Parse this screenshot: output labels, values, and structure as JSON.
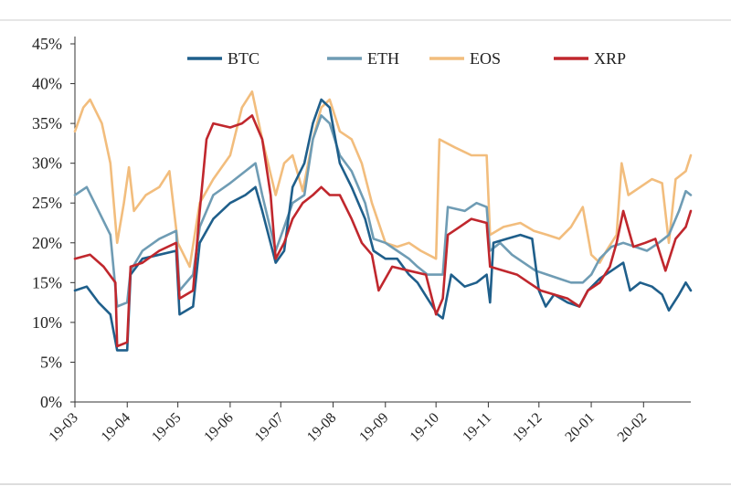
{
  "chart_data": {
    "type": "line",
    "title": "",
    "xlabel": "",
    "ylabel": "",
    "ylim": [
      0,
      45
    ],
    "y_tick_labels": [
      "0%",
      "5%",
      "10%",
      "15%",
      "20%",
      "25%",
      "30%",
      "35%",
      "40%",
      "45%"
    ],
    "y_ticks": [
      0,
      5,
      10,
      15,
      20,
      25,
      30,
      35,
      40,
      45
    ],
    "x_range": [
      "2019-03-01",
      "2020-02-29"
    ],
    "x_tick_labels": [
      "19-03",
      "19-04",
      "19-05",
      "19-06",
      "19-07",
      "19-08",
      "19-09",
      "19-10",
      "19-11",
      "19-12",
      "20-01",
      "20-02"
    ],
    "x_ticks": [
      "2019-03-01",
      "2019-04-01",
      "2019-05-01",
      "2019-06-01",
      "2019-07-01",
      "2019-08-01",
      "2019-09-01",
      "2019-10-01",
      "2019-11-01",
      "2019-12-01",
      "2020-01-01",
      "2020-02-01"
    ],
    "grid": false,
    "legend_placement": "top",
    "series": [
      {
        "name": "BTC",
        "color": "#1f5f8b",
        "points": [
          [
            "2019-03-01",
            14
          ],
          [
            "2019-03-08",
            14.5
          ],
          [
            "2019-03-15",
            12.5
          ],
          [
            "2019-03-22",
            11
          ],
          [
            "2019-03-26",
            6.5
          ],
          [
            "2019-04-01",
            6.5
          ],
          [
            "2019-04-03",
            16
          ],
          [
            "2019-04-10",
            18
          ],
          [
            "2019-04-20",
            18.5
          ],
          [
            "2019-04-30",
            19
          ],
          [
            "2019-05-02",
            11
          ],
          [
            "2019-05-10",
            12
          ],
          [
            "2019-05-14",
            20
          ],
          [
            "2019-05-22",
            23
          ],
          [
            "2019-06-01",
            25
          ],
          [
            "2019-06-10",
            26
          ],
          [
            "2019-06-16",
            27
          ],
          [
            "2019-06-20",
            24
          ],
          [
            "2019-06-28",
            17.5
          ],
          [
            "2019-07-03",
            19
          ],
          [
            "2019-07-08",
            27
          ],
          [
            "2019-07-15",
            30
          ],
          [
            "2019-07-20",
            35
          ],
          [
            "2019-07-25",
            38
          ],
          [
            "2019-07-30",
            37
          ],
          [
            "2019-08-05",
            30
          ],
          [
            "2019-08-12",
            27
          ],
          [
            "2019-08-20",
            23
          ],
          [
            "2019-08-25",
            19
          ],
          [
            "2019-09-01",
            18
          ],
          [
            "2019-09-08",
            18
          ],
          [
            "2019-09-15",
            16
          ],
          [
            "2019-09-20",
            15
          ],
          [
            "2019-09-26",
            13
          ],
          [
            "2019-10-02",
            11
          ],
          [
            "2019-10-05",
            10.5
          ],
          [
            "2019-10-10",
            16
          ],
          [
            "2019-10-18",
            14.5
          ],
          [
            "2019-10-25",
            15
          ],
          [
            "2019-10-31",
            16
          ],
          [
            "2019-11-02",
            12.5
          ],
          [
            "2019-11-04",
            20
          ],
          [
            "2019-11-12",
            20.5
          ],
          [
            "2019-11-20",
            21
          ],
          [
            "2019-11-27",
            20.5
          ],
          [
            "2019-12-01",
            14
          ],
          [
            "2019-12-05",
            12
          ],
          [
            "2019-12-10",
            13.5
          ],
          [
            "2019-12-18",
            12.5
          ],
          [
            "2019-12-25",
            12
          ],
          [
            "2019-12-30",
            14
          ],
          [
            "2020-01-06",
            15.5
          ],
          [
            "2020-01-13",
            16.5
          ],
          [
            "2020-01-20",
            17.5
          ],
          [
            "2020-01-24",
            14
          ],
          [
            "2020-01-30",
            15
          ],
          [
            "2020-02-06",
            14.5
          ],
          [
            "2020-02-12",
            13.5
          ],
          [
            "2020-02-16",
            11.5
          ],
          [
            "2020-02-22",
            13.5
          ],
          [
            "2020-02-26",
            15
          ],
          [
            "2020-02-29",
            14
          ]
        ]
      },
      {
        "name": "ETH",
        "color": "#6f9cb4",
        "points": [
          [
            "2019-03-01",
            26
          ],
          [
            "2019-03-08",
            27
          ],
          [
            "2019-03-15",
            24
          ],
          [
            "2019-03-22",
            21
          ],
          [
            "2019-03-26",
            12
          ],
          [
            "2019-04-01",
            12.5
          ],
          [
            "2019-04-03",
            16.5
          ],
          [
            "2019-04-10",
            19
          ],
          [
            "2019-04-20",
            20.5
          ],
          [
            "2019-04-30",
            21.5
          ],
          [
            "2019-05-02",
            14
          ],
          [
            "2019-05-10",
            16
          ],
          [
            "2019-05-14",
            22
          ],
          [
            "2019-05-22",
            26
          ],
          [
            "2019-06-01",
            27.5
          ],
          [
            "2019-06-10",
            29
          ],
          [
            "2019-06-16",
            30
          ],
          [
            "2019-06-20",
            26
          ],
          [
            "2019-06-28",
            19
          ],
          [
            "2019-07-03",
            22
          ],
          [
            "2019-07-08",
            25
          ],
          [
            "2019-07-15",
            26
          ],
          [
            "2019-07-20",
            33
          ],
          [
            "2019-07-25",
            36
          ],
          [
            "2019-07-30",
            35
          ],
          [
            "2019-08-05",
            31
          ],
          [
            "2019-08-12",
            29
          ],
          [
            "2019-08-20",
            25
          ],
          [
            "2019-08-25",
            20.5
          ],
          [
            "2019-09-01",
            20
          ],
          [
            "2019-09-08",
            19
          ],
          [
            "2019-09-15",
            18
          ],
          [
            "2019-09-20",
            17
          ],
          [
            "2019-09-26",
            16
          ],
          [
            "2019-10-02",
            16
          ],
          [
            "2019-10-05",
            16
          ],
          [
            "2019-10-08",
            24.5
          ],
          [
            "2019-10-18",
            24
          ],
          [
            "2019-10-25",
            25
          ],
          [
            "2019-10-31",
            24.5
          ],
          [
            "2019-11-02",
            19
          ],
          [
            "2019-11-08",
            20
          ],
          [
            "2019-11-15",
            18.5
          ],
          [
            "2019-11-22",
            17.5
          ],
          [
            "2019-11-29",
            16.5
          ],
          [
            "2019-12-06",
            16
          ],
          [
            "2019-12-13",
            15.5
          ],
          [
            "2019-12-20",
            15
          ],
          [
            "2019-12-27",
            15
          ],
          [
            "2020-01-01",
            16
          ],
          [
            "2020-01-06",
            18
          ],
          [
            "2020-01-13",
            19.5
          ],
          [
            "2020-01-20",
            20
          ],
          [
            "2020-01-27",
            19.5
          ],
          [
            "2020-02-03",
            19
          ],
          [
            "2020-02-10",
            20
          ],
          [
            "2020-02-16",
            21
          ],
          [
            "2020-02-22",
            24
          ],
          [
            "2020-02-26",
            26.5
          ],
          [
            "2020-02-29",
            26
          ]
        ]
      },
      {
        "name": "EOS",
        "color": "#f2bd7d",
        "points": [
          [
            "2019-03-01",
            34
          ],
          [
            "2019-03-06",
            37
          ],
          [
            "2019-03-10",
            38
          ],
          [
            "2019-03-17",
            35
          ],
          [
            "2019-03-22",
            30
          ],
          [
            "2019-03-26",
            20
          ],
          [
            "2019-03-30",
            25
          ],
          [
            "2019-04-02",
            29.5
          ],
          [
            "2019-04-05",
            24
          ],
          [
            "2019-04-12",
            26
          ],
          [
            "2019-04-20",
            27
          ],
          [
            "2019-04-26",
            29
          ],
          [
            "2019-05-01",
            20
          ],
          [
            "2019-05-08",
            17
          ],
          [
            "2019-05-14",
            25
          ],
          [
            "2019-05-22",
            28
          ],
          [
            "2019-06-01",
            31
          ],
          [
            "2019-06-08",
            37
          ],
          [
            "2019-06-14",
            39
          ],
          [
            "2019-06-20",
            33
          ],
          [
            "2019-06-28",
            26
          ],
          [
            "2019-07-03",
            30
          ],
          [
            "2019-07-08",
            31
          ],
          [
            "2019-07-14",
            26.5
          ],
          [
            "2019-07-20",
            33
          ],
          [
            "2019-07-25",
            37
          ],
          [
            "2019-07-30",
            38
          ],
          [
            "2019-08-05",
            34
          ],
          [
            "2019-08-12",
            33
          ],
          [
            "2019-08-18",
            30
          ],
          [
            "2019-08-24",
            25
          ],
          [
            "2019-09-01",
            20
          ],
          [
            "2019-09-08",
            19.5
          ],
          [
            "2019-09-15",
            20
          ],
          [
            "2019-09-22",
            19
          ],
          [
            "2019-10-01",
            18
          ],
          [
            "2019-10-03",
            33
          ],
          [
            "2019-10-12",
            32
          ],
          [
            "2019-10-22",
            31
          ],
          [
            "2019-10-31",
            31
          ],
          [
            "2019-11-02",
            21
          ],
          [
            "2019-11-10",
            22
          ],
          [
            "2019-11-20",
            22.5
          ],
          [
            "2019-11-28",
            21.5
          ],
          [
            "2019-12-06",
            21
          ],
          [
            "2019-12-13",
            20.5
          ],
          [
            "2019-12-20",
            22
          ],
          [
            "2019-12-27",
            24.5
          ],
          [
            "2020-01-01",
            18.5
          ],
          [
            "2020-01-06",
            17.5
          ],
          [
            "2020-01-10",
            19
          ],
          [
            "2020-01-16",
            21
          ],
          [
            "2020-01-19",
            30
          ],
          [
            "2020-01-23",
            26
          ],
          [
            "2020-01-30",
            27
          ],
          [
            "2020-02-06",
            28
          ],
          [
            "2020-02-12",
            27.5
          ],
          [
            "2020-02-16",
            20
          ],
          [
            "2020-02-20",
            28
          ],
          [
            "2020-02-26",
            29
          ],
          [
            "2020-02-29",
            31
          ]
        ]
      },
      {
        "name": "XRP",
        "color": "#c0272d",
        "points": [
          [
            "2019-03-01",
            18
          ],
          [
            "2019-03-10",
            18.5
          ],
          [
            "2019-03-18",
            17
          ],
          [
            "2019-03-25",
            15
          ],
          [
            "2019-03-26",
            7
          ],
          [
            "2019-04-01",
            7.5
          ],
          [
            "2019-04-03",
            17
          ],
          [
            "2019-04-10",
            17.5
          ],
          [
            "2019-04-20",
            19
          ],
          [
            "2019-04-30",
            20
          ],
          [
            "2019-05-02",
            13
          ],
          [
            "2019-05-10",
            14
          ],
          [
            "2019-05-14",
            24
          ],
          [
            "2019-05-18",
            33
          ],
          [
            "2019-05-22",
            35
          ],
          [
            "2019-06-01",
            34.5
          ],
          [
            "2019-06-08",
            35
          ],
          [
            "2019-06-14",
            36
          ],
          [
            "2019-06-20",
            33
          ],
          [
            "2019-06-25",
            26
          ],
          [
            "2019-06-28",
            18
          ],
          [
            "2019-07-03",
            20
          ],
          [
            "2019-07-08",
            23
          ],
          [
            "2019-07-14",
            25
          ],
          [
            "2019-07-20",
            26
          ],
          [
            "2019-07-25",
            27
          ],
          [
            "2019-07-30",
            26
          ],
          [
            "2019-08-05",
            26
          ],
          [
            "2019-08-12",
            23
          ],
          [
            "2019-08-18",
            20
          ],
          [
            "2019-08-24",
            18.5
          ],
          [
            "2019-08-28",
            14
          ],
          [
            "2019-09-05",
            17
          ],
          [
            "2019-09-15",
            16.5
          ],
          [
            "2019-09-25",
            16
          ],
          [
            "2019-10-01",
            11
          ],
          [
            "2019-10-05",
            13
          ],
          [
            "2019-10-08",
            21
          ],
          [
            "2019-10-15",
            22
          ],
          [
            "2019-10-22",
            23
          ],
          [
            "2019-10-31",
            22.5
          ],
          [
            "2019-11-02",
            17
          ],
          [
            "2019-11-10",
            16.5
          ],
          [
            "2019-11-18",
            16
          ],
          [
            "2019-11-25",
            15
          ],
          [
            "2019-12-02",
            14
          ],
          [
            "2019-12-10",
            13.5
          ],
          [
            "2019-12-18",
            13
          ],
          [
            "2019-12-25",
            12
          ],
          [
            "2019-12-30",
            14
          ],
          [
            "2020-01-06",
            15
          ],
          [
            "2020-01-12",
            17
          ],
          [
            "2020-01-16",
            20
          ],
          [
            "2020-01-20",
            24
          ],
          [
            "2020-01-26",
            19.5
          ],
          [
            "2020-02-02",
            20
          ],
          [
            "2020-02-08",
            20.5
          ],
          [
            "2020-02-14",
            16.5
          ],
          [
            "2020-02-20",
            20.5
          ],
          [
            "2020-02-26",
            22
          ],
          [
            "2020-02-29",
            24
          ]
        ]
      }
    ]
  }
}
